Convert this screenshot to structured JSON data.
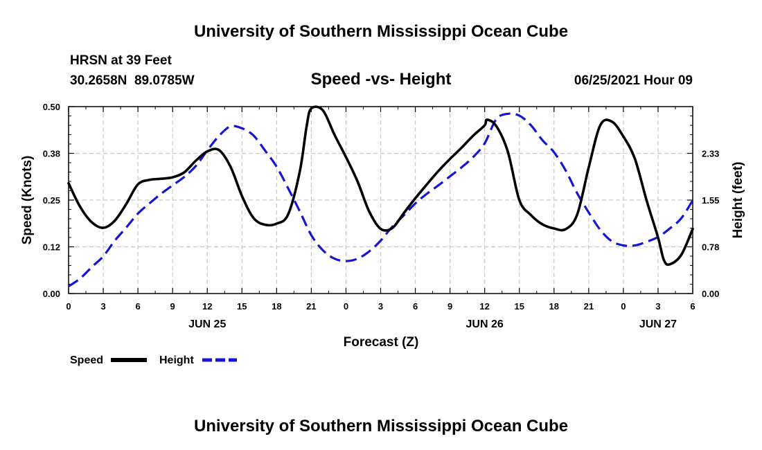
{
  "page": {
    "title_top": "University of Southern Mississippi Ocean Cube",
    "title_bottom": "University of Southern Mississippi Ocean Cube",
    "station": "HRSN at 39 Feet",
    "coords": "30.2658N  89.0785W",
    "date": "06/25/2021 Hour 09"
  },
  "chart_data": {
    "type": "line",
    "title": "Speed -vs- Height",
    "xlabel": "Forecast (Z)",
    "ylabel": "Speed (Knots)",
    "y2label": "Height (feet)",
    "x_ticks": [
      "0",
      "3",
      "6",
      "9",
      "12",
      "15",
      "18",
      "21",
      "0",
      "3",
      "6",
      "9",
      "12",
      "15",
      "18",
      "21",
      "0",
      "3",
      "6"
    ],
    "x_range": [
      0,
      54
    ],
    "day_labels": [
      {
        "label": "JUN 25",
        "hour": 12
      },
      {
        "label": "JUN 26",
        "hour": 36
      },
      {
        "label": "JUN 27",
        "hour": 51
      }
    ],
    "ylim": [
      0,
      0.5
    ],
    "y_ticks": [
      "0.00",
      "0.12",
      "0.25",
      "0.38",
      "0.50"
    ],
    "y2lim": [
      0,
      3.11
    ],
    "y2_ticks": [
      "0.00",
      "0.78",
      "1.55",
      "2.33"
    ],
    "grid": true,
    "series": [
      {
        "name": "Speed",
        "axis": "left",
        "color": "#000000",
        "dash": false,
        "x": [
          0,
          1,
          2,
          3,
          4,
          5,
          6,
          7,
          8,
          9,
          10,
          11,
          12,
          13,
          14,
          15,
          16,
          17,
          18,
          19,
          20,
          20.6,
          21,
          22,
          23,
          24,
          25,
          26,
          27,
          28,
          29,
          30,
          31,
          32,
          33,
          34,
          35,
          36,
          36.2,
          37,
          38,
          39,
          40,
          41,
          42,
          43,
          44,
          45,
          46,
          47,
          48,
          49,
          50,
          51,
          51.5,
          52,
          53,
          54
        ],
        "values": [
          0.295,
          0.232,
          0.191,
          0.176,
          0.195,
          0.24,
          0.292,
          0.304,
          0.307,
          0.311,
          0.324,
          0.355,
          0.38,
          0.384,
          0.34,
          0.261,
          0.202,
          0.184,
          0.187,
          0.212,
          0.326,
          0.448,
          0.495,
          0.49,
          0.425,
          0.365,
          0.3,
          0.22,
          0.173,
          0.175,
          0.215,
          0.255,
          0.292,
          0.328,
          0.36,
          0.39,
          0.422,
          0.45,
          0.465,
          0.448,
          0.38,
          0.25,
          0.21,
          0.185,
          0.174,
          0.172,
          0.211,
          0.337,
          0.45,
          0.46,
          0.42,
          0.36,
          0.25,
          0.15,
          0.09,
          0.078,
          0.103,
          0.173
        ]
      },
      {
        "name": "Height",
        "axis": "right",
        "color": "#1414d2",
        "dash": true,
        "x": [
          0,
          1,
          2,
          3,
          4,
          5,
          6,
          7,
          8,
          9,
          10,
          11,
          12,
          13,
          14,
          15,
          16,
          17,
          18,
          19,
          20,
          21,
          22,
          23,
          24,
          25,
          26,
          27,
          28,
          29,
          30,
          31,
          32,
          33,
          34,
          35,
          36,
          37,
          38,
          39,
          40,
          41,
          42,
          43,
          44,
          45,
          46,
          47,
          48,
          49,
          50,
          51,
          52,
          53,
          54
        ],
        "values": [
          0.12,
          0.25,
          0.44,
          0.62,
          0.88,
          1.1,
          1.33,
          1.5,
          1.66,
          1.8,
          1.94,
          2.12,
          2.38,
          2.62,
          2.78,
          2.75,
          2.63,
          2.38,
          2.11,
          1.75,
          1.37,
          0.97,
          0.72,
          0.58,
          0.54,
          0.58,
          0.7,
          0.88,
          1.11,
          1.3,
          1.5,
          1.66,
          1.8,
          1.95,
          2.1,
          2.27,
          2.5,
          2.9,
          2.99,
          2.96,
          2.8,
          2.55,
          2.35,
          2.05,
          1.67,
          1.35,
          1.06,
          0.87,
          0.8,
          0.8,
          0.86,
          0.94,
          1.08,
          1.25,
          1.55
        ]
      }
    ]
  }
}
